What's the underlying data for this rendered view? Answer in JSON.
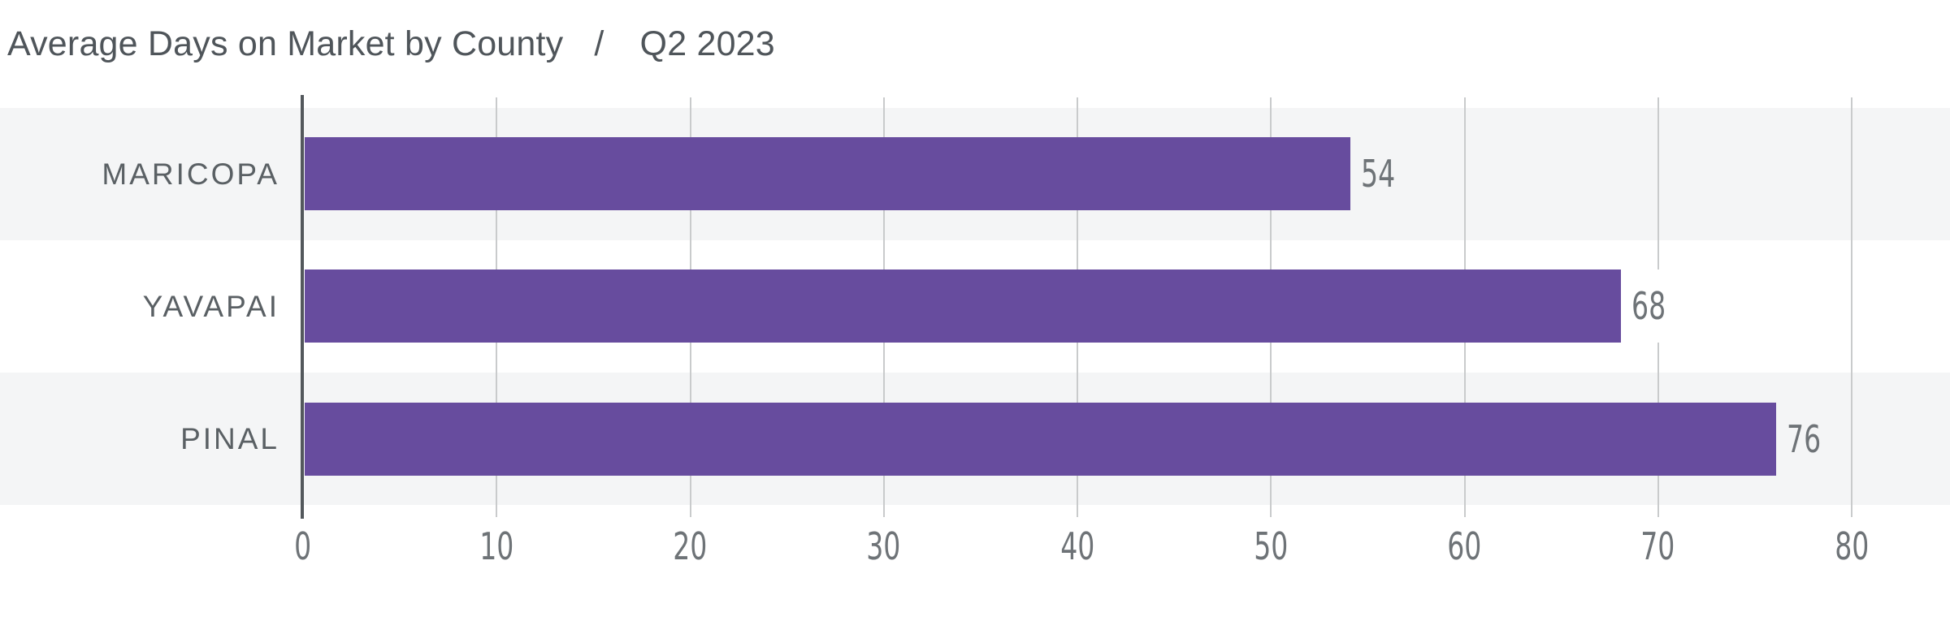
{
  "title": {
    "main": "Average Days on Market by County",
    "separator": "/",
    "period": "Q2 2023"
  },
  "chart_data": {
    "type": "bar",
    "orientation": "horizontal",
    "title": "Average Days on Market by County / Q2 2023",
    "categories": [
      "MARICOPA",
      "YAVAPAI",
      "PINAL"
    ],
    "values": [
      54,
      68,
      76
    ],
    "value_labels": [
      "54",
      "68",
      "76"
    ],
    "xlabel": "",
    "ylabel": "",
    "xlim": [
      0,
      80
    ],
    "xticks": [
      0,
      10,
      20,
      30,
      40,
      50,
      60,
      70,
      80
    ],
    "grid": true,
    "legend": false,
    "colors": {
      "bar": "#674c9e",
      "row_stripe": "#f4f5f6",
      "gridline": "#c9cbcc",
      "axis_line": "#53585c",
      "title_text": "#4f555a",
      "category_text": "#5a6064",
      "value_text": "#6e7377",
      "background": "#ffffff"
    }
  }
}
